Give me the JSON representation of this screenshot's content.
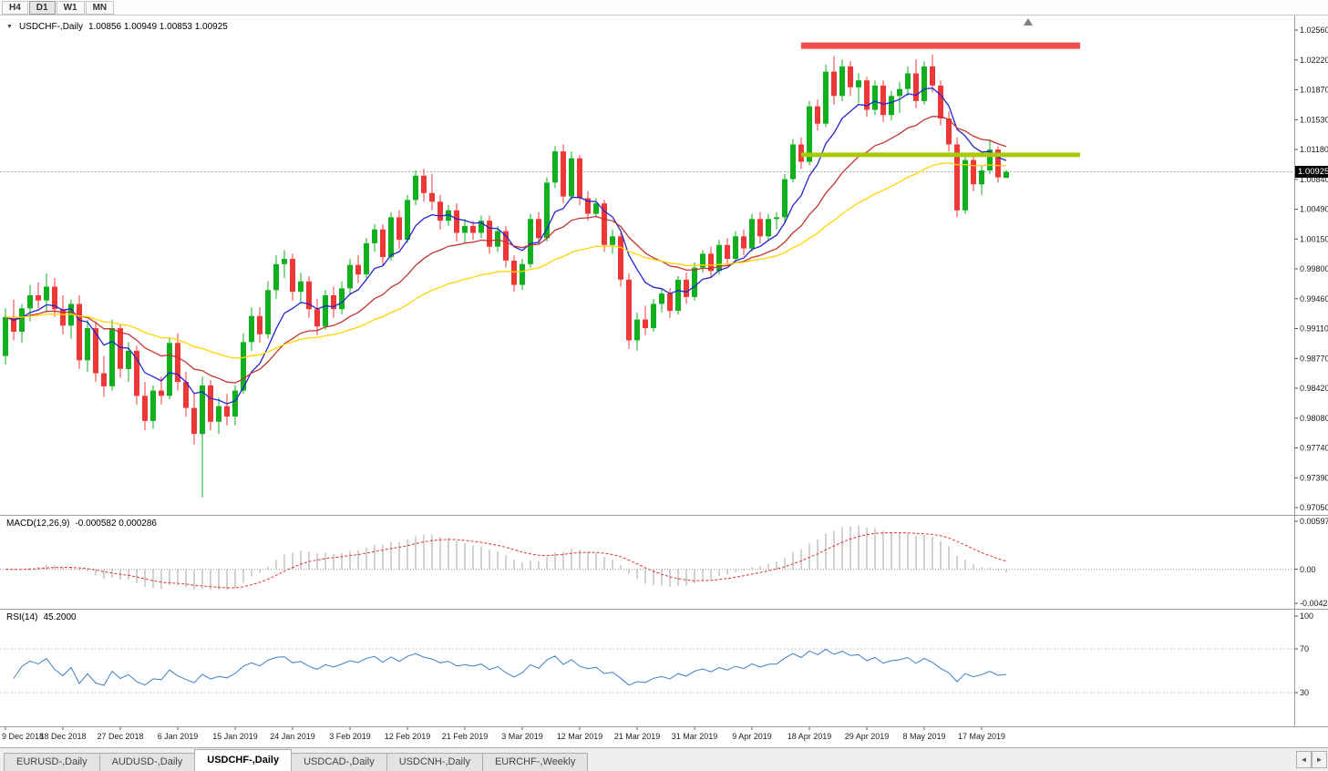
{
  "toolbar": {
    "timeframes": [
      "H4",
      "D1",
      "W1",
      "MN"
    ],
    "active_timeframe": "D1"
  },
  "main_pane": {
    "symbol_title": "USDCHF-,Daily",
    "ohlc_text": "1.00856 1.00949 1.00853 1.00925",
    "current_price_label": "1.00925"
  },
  "macd_pane": {
    "title": "MACD(12,26,9)",
    "values_text": "-0.000582 0.000286"
  },
  "rsi_pane": {
    "title": "RSI(14)",
    "value_text": "45.2000"
  },
  "chart_data": {
    "type": "candlestick",
    "symbol": "USDCHF-",
    "timeframe": "Daily",
    "y_axis_labels": [
      "1.02560",
      "1.02220",
      "1.01870",
      "1.01530",
      "1.01180",
      "1.00840",
      "1.00490",
      "1.00150",
      "0.99800",
      "0.99460",
      "0.99110",
      "0.98770",
      "0.98420",
      "0.98080",
      "0.97740",
      "0.97390",
      "0.97050"
    ],
    "y_top": 1.0256,
    "y_bottom": 0.9705,
    "x_labels": [
      "9 Dec 2018",
      "18 Dec 2018",
      "27 Dec 2018",
      "6 Jan 2019",
      "15 Jan 2019",
      "24 Jan 2019",
      "3 Feb 2019",
      "12 Feb 2019",
      "21 Feb 2019",
      "3 Mar 2019",
      "12 Mar 2019",
      "21 Mar 2019",
      "31 Mar 2019",
      "9 Apr 2019",
      "18 Apr 2019",
      "29 Apr 2019",
      "8 May 2019",
      "17 May 2019"
    ],
    "x_label_step": 7,
    "current_price": 1.00925,
    "candle_up_color": "#0FAF1E",
    "candle_down_color": "#EE3838",
    "moving_averages": [
      {
        "period": 8,
        "color": "#2424CE"
      },
      {
        "period": 20,
        "color": "#C23434"
      },
      {
        "period": 45,
        "color": "#FFD400"
      }
    ],
    "horizontal_lines": [
      {
        "name": "resistance-line",
        "price": 1.0238,
        "from_bar": 97,
        "to_bar": 131,
        "color": "#F24C4C",
        "width": 7
      },
      {
        "name": "support-line",
        "price": 1.0112,
        "from_bar": 97,
        "to_bar": 131,
        "color": "#A9C90D",
        "width": 5
      }
    ],
    "macd": {
      "fast": 12,
      "slow": 26,
      "signal": 9,
      "axis_labels": [
        "0.00597",
        "0.00",
        "-0.00424"
      ],
      "y_max": 0.00597,
      "y_min": -0.00424,
      "histogram_color": "#A4A4A4",
      "signal_color": "#E03232"
    },
    "rsi": {
      "period": 14,
      "axis_labels": [
        "100",
        "70",
        "30"
      ],
      "axis_values": [
        100,
        70,
        30
      ],
      "levels": [
        70,
        30
      ],
      "y_max": 100,
      "y_min": 0,
      "color": "#3F7EC8"
    },
    "candles": [
      [
        0.988,
        0.9935,
        0.987,
        0.9925
      ],
      [
        0.9925,
        0.9945,
        0.9898,
        0.9908
      ],
      [
        0.9908,
        0.994,
        0.9895,
        0.9935
      ],
      [
        0.9935,
        0.9962,
        0.992,
        0.995
      ],
      [
        0.995,
        0.9965,
        0.9935,
        0.9944
      ],
      [
        0.9944,
        0.9975,
        0.993,
        0.996
      ],
      [
        0.996,
        0.997,
        0.9925,
        0.9934
      ],
      [
        0.9934,
        0.995,
        0.9905,
        0.9915
      ],
      [
        0.9915,
        0.9945,
        0.99,
        0.994
      ],
      [
        0.994,
        0.995,
        0.9865,
        0.9875
      ],
      [
        0.9875,
        0.9922,
        0.9862,
        0.9912
      ],
      [
        0.9912,
        0.992,
        0.985,
        0.986
      ],
      [
        0.986,
        0.988,
        0.9833,
        0.9845
      ],
      [
        0.9845,
        0.9922,
        0.984,
        0.9912
      ],
      [
        0.9912,
        0.9916,
        0.9855,
        0.9865
      ],
      [
        0.9865,
        0.9896,
        0.985,
        0.9886
      ],
      [
        0.9886,
        0.9892,
        0.9824,
        0.9834
      ],
      [
        0.9834,
        0.985,
        0.9794,
        0.9805
      ],
      [
        0.9805,
        0.9846,
        0.9796,
        0.984
      ],
      [
        0.984,
        0.9856,
        0.9824,
        0.9834
      ],
      [
        0.9834,
        0.9902,
        0.983,
        0.9895
      ],
      [
        0.9895,
        0.9906,
        0.984,
        0.985
      ],
      [
        0.985,
        0.9862,
        0.981,
        0.982
      ],
      [
        0.982,
        0.9836,
        0.9778,
        0.979
      ],
      [
        0.979,
        0.9856,
        0.9717,
        0.9846
      ],
      [
        0.9846,
        0.9852,
        0.9794,
        0.9804
      ],
      [
        0.9804,
        0.9832,
        0.979,
        0.9822
      ],
      [
        0.9822,
        0.9836,
        0.98,
        0.981
      ],
      [
        0.981,
        0.9846,
        0.98,
        0.984
      ],
      [
        0.984,
        0.9906,
        0.9836,
        0.9896
      ],
      [
        0.9896,
        0.9936,
        0.9886,
        0.9926
      ],
      [
        0.9926,
        0.9936,
        0.9895,
        0.9905
      ],
      [
        0.9905,
        0.9966,
        0.99,
        0.9956
      ],
      [
        0.9956,
        0.9996,
        0.9946,
        0.9986
      ],
      [
        0.9986,
        1.0002,
        0.997,
        0.9992
      ],
      [
        0.9992,
        0.9998,
        0.9944,
        0.9954
      ],
      [
        0.9954,
        0.9976,
        0.994,
        0.9966
      ],
      [
        0.9966,
        0.9972,
        0.9924,
        0.9934
      ],
      [
        0.9934,
        0.9946,
        0.9904,
        0.9914
      ],
      [
        0.9914,
        0.9956,
        0.991,
        0.995
      ],
      [
        0.995,
        0.996,
        0.9924,
        0.9934
      ],
      [
        0.9934,
        0.9966,
        0.9928,
        0.9958
      ],
      [
        0.9958,
        0.9992,
        0.995,
        0.9985
      ],
      [
        0.9985,
        0.9996,
        0.9964,
        0.9974
      ],
      [
        0.9974,
        1.0016,
        0.997,
        1.001
      ],
      [
        1.001,
        1.0032,
        1.0,
        1.0026
      ],
      [
        1.0026,
        1.0032,
        0.9984,
        0.9994
      ],
      [
        0.9994,
        1.0046,
        0.999,
        1.004
      ],
      [
        1.004,
        1.0048,
        1.0004,
        1.0014
      ],
      [
        1.0014,
        1.0066,
        1.001,
        1.006
      ],
      [
        1.006,
        1.0094,
        1.0054,
        1.0088
      ],
      [
        1.0088,
        1.0096,
        1.0058,
        1.0068
      ],
      [
        1.0068,
        1.009,
        1.0048,
        1.0058
      ],
      [
        1.0058,
        1.0066,
        1.0026,
        1.0036
      ],
      [
        1.0036,
        1.0054,
        1.003,
        1.0048
      ],
      [
        1.0048,
        1.0056,
        1.0012,
        1.0022
      ],
      [
        1.0022,
        1.0038,
        1.001,
        1.003
      ],
      [
        1.003,
        1.0036,
        1.0014,
        1.0022
      ],
      [
        1.0022,
        1.0042,
        1.0016,
        1.0036
      ],
      [
        1.0036,
        1.0042,
        0.9998,
        1.0006
      ],
      [
        1.0006,
        1.003,
        1.0,
        1.0024
      ],
      [
        1.0024,
        1.003,
        0.9982,
        0.999
      ],
      [
        0.999,
        0.9996,
        0.9954,
        0.9962
      ],
      [
        0.9962,
        0.9992,
        0.9956,
        0.9986
      ],
      [
        0.9986,
        1.0044,
        0.9982,
        1.0038
      ],
      [
        1.0038,
        1.0046,
        1.0008,
        1.0016
      ],
      [
        1.0016,
        1.0086,
        1.0012,
        1.008
      ],
      [
        1.008,
        1.0122,
        1.0074,
        1.0116
      ],
      [
        1.0116,
        1.0124,
        1.0056,
        1.0064
      ],
      [
        1.0064,
        1.0116,
        1.006,
        1.0108
      ],
      [
        1.0108,
        1.0112,
        1.0054,
        1.0062
      ],
      [
        1.0062,
        1.007,
        1.0036,
        1.0044
      ],
      [
        1.0044,
        1.0062,
        1.004,
        1.0056
      ],
      [
        1.0056,
        1.006,
        1.0,
        1.0008
      ],
      [
        1.0008,
        1.0026,
        0.9998,
        1.0018
      ],
      [
        1.0018,
        1.0022,
        0.996,
        0.9968
      ],
      [
        0.9968,
        0.9975,
        0.9888,
        0.9898
      ],
      [
        0.9898,
        0.993,
        0.9886,
        0.9922
      ],
      [
        0.9922,
        0.9938,
        0.9904,
        0.9912
      ],
      [
        0.9912,
        0.9946,
        0.9908,
        0.994
      ],
      [
        0.994,
        0.9958,
        0.993,
        0.9952
      ],
      [
        0.9952,
        0.9958,
        0.9924,
        0.9932
      ],
      [
        0.9932,
        0.9972,
        0.9928,
        0.9968
      ],
      [
        0.9968,
        0.9976,
        0.994,
        0.9948
      ],
      [
        0.9948,
        0.9988,
        0.9944,
        0.9982
      ],
      [
        0.9982,
        1.0002,
        0.9976,
        0.9998
      ],
      [
        0.9998,
        1.0006,
        0.997,
        0.9978
      ],
      [
        0.9978,
        1.0014,
        0.9974,
        1.0008
      ],
      [
        1.0008,
        1.0016,
        0.9984,
        0.9992
      ],
      [
        0.9992,
        1.0024,
        0.9988,
        1.0018
      ],
      [
        1.0018,
        1.0026,
        0.9996,
        1.0004
      ],
      [
        1.0004,
        1.0044,
        1.0,
        1.0038
      ],
      [
        1.0038,
        1.0046,
        1.001,
        1.0018
      ],
      [
        1.0018,
        1.0044,
        1.0014,
        1.0038
      ],
      [
        1.0038,
        1.0046,
        1.0026,
        1.004
      ],
      [
        1.004,
        1.009,
        1.0034,
        1.0084
      ],
      [
        1.0084,
        1.013,
        1.008,
        1.0124
      ],
      [
        1.0124,
        1.0132,
        1.0096,
        1.0104
      ],
      [
        1.0104,
        1.0174,
        1.01,
        1.0168
      ],
      [
        1.0168,
        1.0176,
        1.014,
        1.0148
      ],
      [
        1.0148,
        1.0216,
        1.0144,
        1.0208
      ],
      [
        1.0208,
        1.0226,
        1.017,
        1.018
      ],
      [
        1.018,
        1.0222,
        1.0174,
        1.0214
      ],
      [
        1.0214,
        1.022,
        1.018,
        1.019
      ],
      [
        1.019,
        1.0206,
        1.0172,
        1.0198
      ],
      [
        1.0198,
        1.0202,
        1.0156,
        1.0164
      ],
      [
        1.0164,
        1.0198,
        1.0158,
        1.0192
      ],
      [
        1.0192,
        1.0198,
        1.015,
        1.0158
      ],
      [
        1.0158,
        1.0186,
        1.0152,
        1.018
      ],
      [
        1.018,
        1.0196,
        1.016,
        1.0188
      ],
      [
        1.0188,
        1.0214,
        1.018,
        1.0206
      ],
      [
        1.0206,
        1.0222,
        1.0166,
        1.0174
      ],
      [
        1.0174,
        1.022,
        1.017,
        1.0214
      ],
      [
        1.0214,
        1.0228,
        1.0184,
        1.0192
      ],
      [
        1.0192,
        1.0198,
        1.0146,
        1.0154
      ],
      [
        1.0154,
        1.0162,
        1.0116,
        1.0124
      ],
      [
        1.0124,
        1.0132,
        1.004,
        1.0048
      ],
      [
        1.0048,
        1.0112,
        1.0044,
        1.0106
      ],
      [
        1.0106,
        1.0112,
        1.007,
        1.0078
      ],
      [
        1.0078,
        1.01,
        1.0066,
        1.0094
      ],
      [
        1.0094,
        1.013,
        1.009,
        1.0118
      ],
      [
        1.0118,
        1.0122,
        1.008,
        1.0086
      ],
      [
        1.00856,
        1.00949,
        1.00853,
        1.00925
      ]
    ]
  },
  "tabs": [
    {
      "label": "EURUSD-,Daily",
      "active": false
    },
    {
      "label": "AUDUSD-,Daily",
      "active": false
    },
    {
      "label": "USDCHF-,Daily",
      "active": true
    },
    {
      "label": "USDCAD-,Daily",
      "active": false
    },
    {
      "label": "USDCNH-,Daily",
      "active": false
    },
    {
      "label": "EURCHF-,Weekly",
      "active": false
    }
  ],
  "scrollbar": {
    "left_arrow": "◄",
    "right_arrow": "►"
  }
}
